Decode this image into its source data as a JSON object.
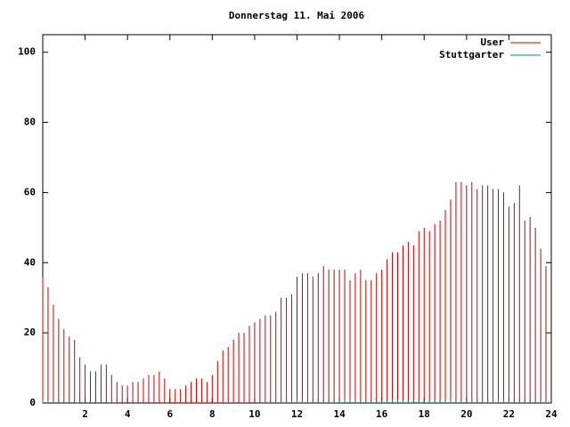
{
  "chart_data": {
    "type": "impulses",
    "title": "Donnerstag 11. Mai 2006",
    "x": [
      0,
      0.25,
      0.5,
      0.75,
      1,
      1.25,
      1.5,
      1.75,
      2,
      2.25,
      2.5,
      2.75,
      3,
      3.25,
      3.5,
      3.75,
      4,
      4.25,
      4.5,
      4.75,
      5,
      5.25,
      5.5,
      5.75,
      6,
      6.25,
      6.5,
      6.75,
      7,
      7.25,
      7.5,
      7.75,
      8,
      8.25,
      8.5,
      8.75,
      9,
      9.25,
      9.5,
      9.75,
      10,
      10.25,
      10.5,
      10.75,
      11,
      11.25,
      11.5,
      11.75,
      12,
      12.25,
      12.5,
      12.75,
      13,
      13.25,
      13.5,
      13.75,
      14,
      14.25,
      14.5,
      14.75,
      15,
      15.25,
      15.5,
      15.75,
      16,
      16.25,
      16.5,
      16.75,
      17,
      17.25,
      17.5,
      17.75,
      18,
      18.25,
      18.5,
      18.75,
      19,
      19.25,
      19.5,
      19.75,
      20,
      20.25,
      20.5,
      20.75,
      21,
      21.25,
      21.5,
      21.75,
      22,
      22.25,
      22.5,
      22.75,
      23,
      23.25,
      23.5,
      23.75
    ],
    "series": [
      {
        "name": "User",
        "color": "#cc0000",
        "values": [
          36,
          33,
          28,
          24,
          21,
          19,
          18,
          13,
          11,
          9,
          9,
          11,
          11,
          8,
          6,
          5,
          5,
          6,
          6,
          7,
          8,
          8,
          9,
          7,
          4,
          4,
          4,
          5,
          6,
          7,
          7,
          6,
          8,
          12,
          15,
          16,
          18,
          20,
          20,
          22,
          23,
          24,
          25,
          25,
          26,
          30,
          30,
          31,
          36,
          37,
          37,
          36,
          37,
          39,
          38,
          38,
          38,
          38,
          35,
          37,
          38,
          35,
          35,
          37,
          38,
          41,
          43,
          43,
          45,
          46,
          45,
          49,
          50,
          49,
          51,
          52,
          55,
          58,
          63,
          63,
          62,
          63,
          61,
          62,
          62,
          61,
          61,
          60,
          56,
          57,
          62,
          52,
          53,
          50,
          44,
          39
        ]
      },
      {
        "name": "Stuttgarter",
        "color": "#008b8b",
        "values": [
          1,
          1,
          1,
          1,
          0,
          0,
          0,
          0,
          0,
          0,
          0,
          0,
          0,
          0,
          0,
          0,
          0,
          0,
          0,
          0,
          0,
          0,
          0,
          0,
          0,
          0,
          0,
          0,
          0,
          0,
          0,
          0,
          0,
          0,
          0,
          0,
          0,
          0,
          0,
          0,
          0,
          0,
          1,
          1,
          1,
          1,
          1,
          1,
          1,
          1,
          1,
          1,
          1,
          1,
          1,
          1,
          1,
          1,
          1,
          1,
          1,
          1,
          1,
          1,
          1,
          1,
          1,
          1,
          1,
          1,
          1,
          1,
          1,
          1,
          1,
          1,
          1,
          1,
          1,
          1,
          1,
          1,
          1,
          1,
          1,
          1,
          1,
          1,
          1,
          1,
          1,
          1,
          1,
          1,
          1,
          1
        ]
      }
    ],
    "xlim": [
      0,
      24
    ],
    "xticks": [
      2,
      4,
      6,
      8,
      10,
      12,
      14,
      16,
      18,
      20,
      22,
      24
    ],
    "ylim": [
      0,
      105
    ],
    "yticks": [
      0,
      20,
      40,
      60,
      80,
      100
    ],
    "legend": "top-right"
  }
}
